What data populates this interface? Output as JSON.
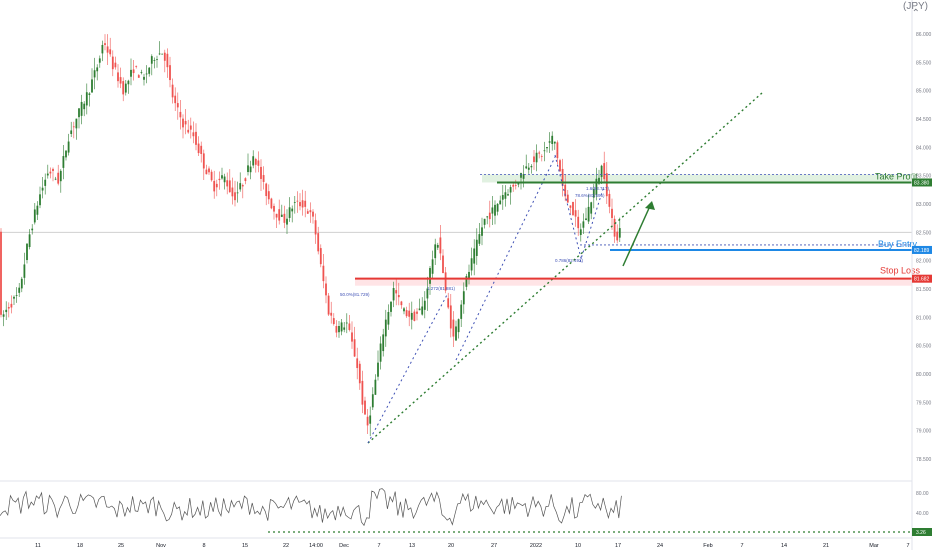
{
  "header": {
    "symbol_label": "JPY",
    "collapse_glyph": "⌃"
  },
  "price_axis": {
    "ticks": [
      "86.000",
      "85.500",
      "85.000",
      "84.500",
      "84.000",
      "83.500",
      "83.000",
      "82.500",
      "82.000",
      "81.500",
      "81.000",
      "80.500",
      "80.000",
      "79.500",
      "79.000",
      "78.500"
    ]
  },
  "rsi_axis": {
    "ticks": [
      "80.00",
      "40.00"
    ]
  },
  "time_axis": {
    "ticks": [
      "11",
      "18",
      "25",
      "Nov",
      "8",
      "15",
      "22",
      "14:00",
      "Dec",
      "7",
      "13",
      "20",
      "27",
      "2022",
      "10",
      "17",
      "24",
      "Feb",
      "7",
      "14",
      "21",
      "Mar",
      "7"
    ]
  },
  "labels": {
    "take_profit": "Take Profit",
    "buy_entry": "Buy Entry",
    "stop_loss": "Stop Loss"
  },
  "badges": {
    "take_profit": "83.380",
    "buy_entry": "82.189",
    "stop_loss": "81.682",
    "rsi_level": "3.26"
  },
  "fib_labels": {
    "f1": "1.6(83.717)",
    "f2": "78.6%(83.596)",
    "f3": "0.786(82.492)",
    "f4": "1.272(81.881)",
    "f5": "50.0%(81.729)"
  },
  "colors": {
    "up": "#26a69a",
    "down": "#ef5350",
    "up_dark": "#2e7d32",
    "take_profit": "#2e7d32",
    "buy_entry": "#1e88e5",
    "stop_loss": "#e53935",
    "trendline": "#2e7d32",
    "fib_line": "#3f51b5",
    "rsi": "#555555"
  },
  "chart_data": {
    "type": "candlestick",
    "symbol": "JPY",
    "y_range": [
      78.3,
      86.5
    ],
    "levels": {
      "take_profit": 83.38,
      "buy_entry": 82.189,
      "stop_loss": 81.682,
      "current_price": 82.5
    },
    "price_path": [
      [
        0,
        80.9
      ],
      [
        10,
        81.2
      ],
      [
        20,
        81.4
      ],
      [
        30,
        82.4
      ],
      [
        40,
        83.1
      ],
      [
        50,
        83.6
      ],
      [
        60,
        83.4
      ],
      [
        70,
        84.2
      ],
      [
        80,
        84.6
      ],
      [
        90,
        85.0
      ],
      [
        100,
        85.5
      ],
      [
        105,
        85.9
      ],
      [
        115,
        85.4
      ],
      [
        125,
        85.0
      ],
      [
        135,
        85.4
      ],
      [
        145,
        85.2
      ],
      [
        155,
        85.6
      ],
      [
        165,
        85.7
      ],
      [
        175,
        84.8
      ],
      [
        185,
        84.4
      ],
      [
        195,
        84.2
      ],
      [
        205,
        83.7
      ],
      [
        215,
        83.3
      ],
      [
        225,
        83.5
      ],
      [
        235,
        83.1
      ],
      [
        245,
        83.4
      ],
      [
        255,
        83.9
      ],
      [
        265,
        83.3
      ],
      [
        275,
        82.9
      ],
      [
        285,
        82.7
      ],
      [
        295,
        83.0
      ],
      [
        305,
        83.0
      ],
      [
        315,
        82.7
      ],
      [
        322,
        81.9
      ],
      [
        330,
        81.1
      ],
      [
        338,
        80.8
      ],
      [
        348,
        80.9
      ],
      [
        358,
        80.2
      ],
      [
        368,
        79.0
      ],
      [
        375,
        79.7
      ],
      [
        385,
        80.8
      ],
      [
        395,
        81.5
      ],
      [
        405,
        81.1
      ],
      [
        415,
        81.0
      ],
      [
        425,
        81.2
      ],
      [
        433,
        82.0
      ],
      [
        440,
        82.4
      ],
      [
        447,
        81.4
      ],
      [
        455,
        80.6
      ],
      [
        465,
        81.5
      ],
      [
        475,
        82.1
      ],
      [
        485,
        82.7
      ],
      [
        495,
        82.9
      ],
      [
        505,
        83.2
      ],
      [
        515,
        83.3
      ],
      [
        525,
        83.6
      ],
      [
        535,
        83.8
      ],
      [
        545,
        83.9
      ],
      [
        555,
        84.2
      ],
      [
        560,
        83.7
      ],
      [
        566,
        83.1
      ],
      [
        572,
        83.0
      ],
      [
        580,
        82.5
      ],
      [
        588,
        82.8
      ],
      [
        596,
        83.3
      ],
      [
        604,
        83.7
      ],
      [
        610,
        83.0
      ],
      [
        614,
        82.6
      ],
      [
        618,
        82.4
      ],
      [
        622,
        82.6
      ]
    ],
    "rsi_ticks": [
      80,
      40
    ],
    "rsi_level_value": 3.26
  }
}
